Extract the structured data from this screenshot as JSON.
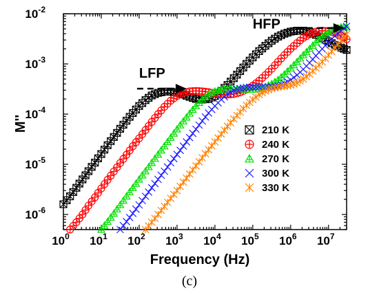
{
  "chart_data": {
    "type": "scatter",
    "title": "",
    "xlabel": "Frequency (Hz)",
    "ylabel": "M''",
    "xscale": "log",
    "yscale": "log",
    "xlim": [
      1,
      30000000
    ],
    "ylim": [
      5e-07,
      0.01
    ],
    "x_ticks": [
      {
        "v": 1,
        "m": "10",
        "e": "0"
      },
      {
        "v": 10,
        "m": "10",
        "e": "1"
      },
      {
        "v": 100,
        "m": "10",
        "e": "2"
      },
      {
        "v": 1000,
        "m": "10",
        "e": "3"
      },
      {
        "v": 10000,
        "m": "10",
        "e": "4"
      },
      {
        "v": 100000,
        "m": "10",
        "e": "5"
      },
      {
        "v": 1000000,
        "m": "10",
        "e": "6"
      },
      {
        "v": 10000000,
        "m": "10",
        "e": "7"
      }
    ],
    "y_ticks": [
      {
        "v": 1e-06,
        "m": "10",
        "e": "-6"
      },
      {
        "v": 1e-05,
        "m": "10",
        "e": "-5"
      },
      {
        "v": 0.0001,
        "m": "10",
        "e": "-4"
      },
      {
        "v": 0.001,
        "m": "10",
        "e": "-3"
      },
      {
        "v": 0.01,
        "m": "10",
        "e": "-2"
      }
    ],
    "grid": false,
    "legend_position": "center-right",
    "series": [
      {
        "name": "210 K",
        "color": "#000000",
        "marker": "box-x",
        "points": [
          [
            1.0,
            1.6e-06
          ],
          [
            1.5,
            2.3e-06
          ],
          [
            2.2,
            3.4e-06
          ],
          [
            3.2,
            5e-06
          ],
          [
            4.6,
            7.3e-06
          ],
          [
            6.8,
            1.08e-05
          ],
          [
            10,
            1.6e-05
          ],
          [
            14.7,
            2.4e-05
          ],
          [
            21.5,
            3.5e-05
          ],
          [
            31.6,
            5.1e-05
          ],
          [
            46.4,
            7.4e-05
          ],
          [
            68.1,
            0.000105
          ],
          [
            100,
            0.000145
          ],
          [
            147,
            0.00019
          ],
          [
            215,
            0.000235
          ],
          [
            316,
            0.000265
          ],
          [
            464,
            0.00028
          ],
          [
            681,
            0.00028
          ],
          [
            1000,
            0.000265
          ],
          [
            1470,
            0.000245
          ],
          [
            2150,
            0.00022
          ],
          [
            3160,
            0.0002
          ],
          [
            4640,
            0.000195
          ],
          [
            6810,
            0.0002
          ],
          [
            10000,
            0.00023
          ],
          [
            14700,
            0.00029
          ],
          [
            21500,
            0.00038
          ],
          [
            31600,
            0.00052
          ],
          [
            46400,
            0.00072
          ],
          [
            68100,
            0.001
          ],
          [
            100000,
            0.00135
          ],
          [
            147000,
            0.0018
          ],
          [
            215000,
            0.0023
          ],
          [
            316000,
            0.0029
          ],
          [
            464000,
            0.0035
          ],
          [
            681000,
            0.004
          ],
          [
            1000000,
            0.0044
          ],
          [
            1470000,
            0.0046
          ],
          [
            2150000,
            0.0046
          ],
          [
            3160000,
            0.0043
          ],
          [
            4640000,
            0.0038
          ],
          [
            6810000,
            0.0033
          ],
          [
            10000000,
            0.0028
          ],
          [
            14700000,
            0.0024
          ],
          [
            21500000,
            0.0021
          ],
          [
            30000000,
            0.0019
          ]
        ]
      },
      {
        "name": "240 K",
        "color": "#ff0000",
        "marker": "circle-plus",
        "points": [
          [
            1.5,
            5e-07
          ],
          [
            2.2,
            7e-07
          ],
          [
            3.2,
            1e-06
          ],
          [
            4.6,
            1.5e-06
          ],
          [
            6.8,
            2.2e-06
          ],
          [
            10,
            3.3e-06
          ],
          [
            14.7,
            4.9e-06
          ],
          [
            21.5,
            7.2e-06
          ],
          [
            31.6,
            1.06e-05
          ],
          [
            46.4,
            1.55e-05
          ],
          [
            68.1,
            2.3e-05
          ],
          [
            100,
            3.3e-05
          ],
          [
            147,
            4.8e-05
          ],
          [
            215,
            7e-05
          ],
          [
            316,
            0.0001
          ],
          [
            464,
            0.00014
          ],
          [
            681,
            0.000185
          ],
          [
            1000,
            0.00023
          ],
          [
            1470,
            0.000265
          ],
          [
            2150,
            0.000285
          ],
          [
            3160,
            0.00029
          ],
          [
            4640,
            0.000285
          ],
          [
            6810,
            0.000275
          ],
          [
            10000,
            0.00026
          ],
          [
            14700,
            0.00025
          ],
          [
            21500,
            0.000245
          ],
          [
            31600,
            0.00025
          ],
          [
            46400,
            0.00027
          ],
          [
            68100,
            0.00031
          ],
          [
            100000,
            0.00037
          ],
          [
            147000,
            0.00046
          ],
          [
            215000,
            0.0006
          ],
          [
            316000,
            0.0008
          ],
          [
            464000,
            0.0011
          ],
          [
            681000,
            0.0015
          ],
          [
            1000000,
            0.002
          ],
          [
            1470000,
            0.0026
          ],
          [
            2150000,
            0.0033
          ],
          [
            3160000,
            0.0039
          ],
          [
            4640000,
            0.0044
          ],
          [
            6810000,
            0.0046
          ],
          [
            10000000,
            0.0045
          ],
          [
            14700000,
            0.0041
          ],
          [
            21500000,
            0.0036
          ],
          [
            30000000,
            0.0031
          ]
        ]
      },
      {
        "name": "270 K",
        "color": "#00e000",
        "marker": "triangle-plus",
        "points": [
          [
            10,
            5e-07
          ],
          [
            14.7,
            7.2e-07
          ],
          [
            21.5,
            1.05e-06
          ],
          [
            31.6,
            1.55e-06
          ],
          [
            46.4,
            2.3e-06
          ],
          [
            68.1,
            3.4e-06
          ],
          [
            100,
            5e-06
          ],
          [
            147,
            7.3e-06
          ],
          [
            215,
            1.07e-05
          ],
          [
            316,
            1.57e-05
          ],
          [
            464,
            2.3e-05
          ],
          [
            681,
            3.4e-05
          ],
          [
            1000,
            5e-05
          ],
          [
            1470,
            7.2e-05
          ],
          [
            2150,
            0.000103
          ],
          [
            3160,
            0.000145
          ],
          [
            4640,
            0.000195
          ],
          [
            6810,
            0.000245
          ],
          [
            10000,
            0.000285
          ],
          [
            14700,
            0.00031
          ],
          [
            21500,
            0.00032
          ],
          [
            31600,
            0.00032
          ],
          [
            46400,
            0.000315
          ],
          [
            68100,
            0.00031
          ],
          [
            100000,
            0.00031
          ],
          [
            147000,
            0.00032
          ],
          [
            215000,
            0.00035
          ],
          [
            316000,
            0.0004
          ],
          [
            464000,
            0.00048
          ],
          [
            681000,
            0.00062
          ],
          [
            1000000,
            0.00082
          ],
          [
            1470000,
            0.0011
          ],
          [
            2150000,
            0.0015
          ],
          [
            3160000,
            0.002
          ],
          [
            4640000,
            0.0027
          ],
          [
            6810000,
            0.0035
          ],
          [
            10000000,
            0.0043
          ],
          [
            14700000,
            0.005
          ],
          [
            21500000,
            0.0054
          ],
          [
            30000000,
            0.0054
          ]
        ]
      },
      {
        "name": "300 K",
        "color": "#1f1fff",
        "marker": "x",
        "points": [
          [
            31.6,
            5e-07
          ],
          [
            46.4,
            7.2e-07
          ],
          [
            68.1,
            1.05e-06
          ],
          [
            100,
            1.55e-06
          ],
          [
            147,
            2.3e-06
          ],
          [
            215,
            3.4e-06
          ],
          [
            316,
            5e-06
          ],
          [
            464,
            7.3e-06
          ],
          [
            681,
            1.07e-05
          ],
          [
            1000,
            1.57e-05
          ],
          [
            1470,
            2.3e-05
          ],
          [
            2150,
            3.4e-05
          ],
          [
            3160,
            5e-05
          ],
          [
            4640,
            7.3e-05
          ],
          [
            6810,
            0.000105
          ],
          [
            10000,
            0.000145
          ],
          [
            14700,
            0.000195
          ],
          [
            21500,
            0.00025
          ],
          [
            31600,
            0.000295
          ],
          [
            46400,
            0.000325
          ],
          [
            68100,
            0.00034
          ],
          [
            100000,
            0.000345
          ],
          [
            147000,
            0.000345
          ],
          [
            215000,
            0.000345
          ],
          [
            316000,
            0.00035
          ],
          [
            464000,
            0.00037
          ],
          [
            681000,
            0.00041
          ],
          [
            1000000,
            0.00048
          ],
          [
            1470000,
            0.0006
          ],
          [
            2150000,
            0.00078
          ],
          [
            3160000,
            0.00105
          ],
          [
            4640000,
            0.00145
          ],
          [
            6810000,
            0.002
          ],
          [
            10000000,
            0.0027
          ],
          [
            14700000,
            0.0036
          ],
          [
            21500000,
            0.0046
          ],
          [
            30000000,
            0.0056
          ]
        ]
      },
      {
        "name": "330 K",
        "color": "#ff8000",
        "marker": "asterisk",
        "points": [
          [
            147,
            5e-07
          ],
          [
            215,
            7e-07
          ],
          [
            316,
            1e-06
          ],
          [
            464,
            1.45e-06
          ],
          [
            681,
            2.1e-06
          ],
          [
            1000,
            3e-06
          ],
          [
            1470,
            4.4e-06
          ],
          [
            2150,
            6.4e-06
          ],
          [
            3160,
            9.3e-06
          ],
          [
            4640,
            1.35e-05
          ],
          [
            6810,
            1.95e-05
          ],
          [
            10000,
            2.8e-05
          ],
          [
            14700,
            4e-05
          ],
          [
            21500,
            5.7e-05
          ],
          [
            31600,
            8e-05
          ],
          [
            46400,
            0.00011
          ],
          [
            68100,
            0.00015
          ],
          [
            100000,
            0.000195
          ],
          [
            147000,
            0.000245
          ],
          [
            215000,
            0.00029
          ],
          [
            316000,
            0.000325
          ],
          [
            464000,
            0.000345
          ],
          [
            681000,
            0.00036
          ],
          [
            1000000,
            0.00038
          ],
          [
            1470000,
            0.00042
          ],
          [
            2150000,
            0.0005
          ],
          [
            3160000,
            0.00063
          ],
          [
            4640000,
            0.00083
          ],
          [
            6810000,
            0.0011
          ],
          [
            10000000,
            0.0015
          ],
          [
            14700000,
            0.0021
          ],
          [
            21500000,
            0.0029
          ],
          [
            30000000,
            0.0039
          ]
        ]
      }
    ],
    "annotations": [
      {
        "text": "LFP",
        "arrow": "right",
        "x": 1000,
        "y": 0.0005
      },
      {
        "text": "HFP",
        "arrow": "right",
        "x": 1000000,
        "y": 0.0067
      }
    ]
  },
  "caption": "(c)"
}
